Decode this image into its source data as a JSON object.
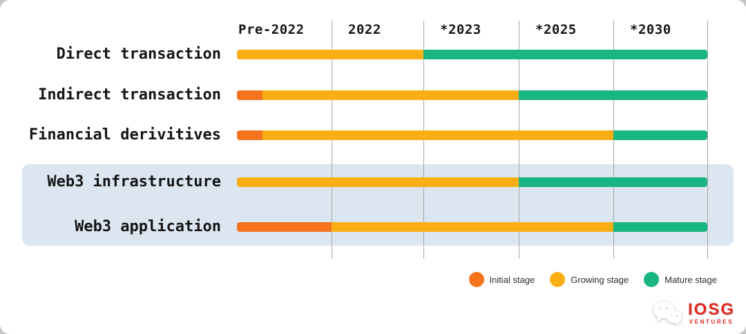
{
  "chart_data": {
    "type": "bar",
    "subtype": "stage-timeline-gantt",
    "title": "",
    "columns": [
      "Pre-2022",
      "2022",
      "*2023",
      "*2025",
      "*2030"
    ],
    "x_unit": "column-index (0 = start of Pre-2022, 5 = end of *2030 column)",
    "grid": true,
    "legend_position": "bottom-right",
    "highlight_band_color": "#dce6f1",
    "legend": [
      {
        "stage": "initial",
        "label": "Initial stage",
        "color": "#f4731c"
      },
      {
        "stage": "growing",
        "label": "Growing stage",
        "color": "#f9ae16"
      },
      {
        "stage": "mature",
        "label": "Mature stage",
        "color": "#19b683"
      }
    ],
    "rows": [
      {
        "label": "Direct transaction",
        "highlighted": false,
        "segments": [
          {
            "stage": "growing",
            "start": 0,
            "end": 2
          },
          {
            "stage": "mature",
            "start": 2,
            "end": 5
          }
        ]
      },
      {
        "label": "Indirect transaction",
        "highlighted": false,
        "segments": [
          {
            "stage": "initial",
            "start": 0,
            "end": 0.27
          },
          {
            "stage": "growing",
            "start": 0.27,
            "end": 3
          },
          {
            "stage": "mature",
            "start": 3,
            "end": 5
          }
        ]
      },
      {
        "label": "Financial derivitives",
        "highlighted": false,
        "segments": [
          {
            "stage": "initial",
            "start": 0,
            "end": 0.27
          },
          {
            "stage": "growing",
            "start": 0.27,
            "end": 4
          },
          {
            "stage": "mature",
            "start": 4,
            "end": 5
          }
        ]
      },
      {
        "label": "Web3 infrastructure",
        "highlighted": true,
        "segments": [
          {
            "stage": "growing",
            "start": 0,
            "end": 3
          },
          {
            "stage": "mature",
            "start": 3,
            "end": 5
          }
        ]
      },
      {
        "label": "Web3 application",
        "highlighted": true,
        "segments": [
          {
            "stage": "initial",
            "start": 0,
            "end": 1
          },
          {
            "stage": "growing",
            "start": 1,
            "end": 4
          },
          {
            "stage": "mature",
            "start": 4,
            "end": 5
          }
        ]
      }
    ]
  },
  "logo": {
    "brand": "IOSG",
    "sub": "VENTURES",
    "icon": "wechat-icon"
  }
}
